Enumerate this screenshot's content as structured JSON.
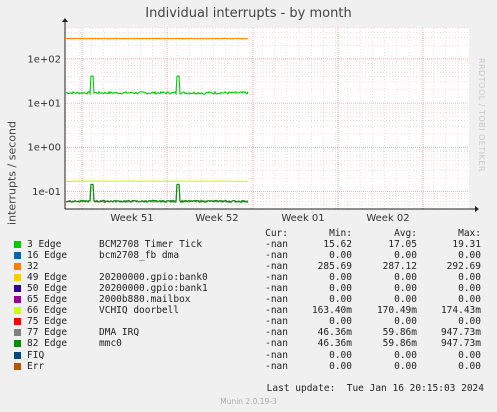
{
  "title": "Individual interrupts - by month",
  "watermark": "RRDTOOL / TOBI OETIKER",
  "footer": "Munin 2.0.19-3",
  "last_update": "Last update:  Tue Jan 16 20:15:03 2024",
  "legend_headers": {
    "cur": "Cur:",
    "min": "Min:",
    "avg": "Avg:",
    "max": "Max:"
  },
  "chart_data": {
    "type": "line",
    "title": "Individual interrupts - by month",
    "ylabel": "interrupts / second",
    "yscale": "log",
    "ylim": [
      0.04,
      500
    ],
    "y_ticks": [
      {
        "value": 0.1,
        "label": "1e-01"
      },
      {
        "value": 1,
        "label": "1e+00"
      },
      {
        "value": 10,
        "label": "1e+01"
      },
      {
        "value": 100,
        "label": "1e+02"
      }
    ],
    "x_ticks": [
      "Week 51",
      "Week 52",
      "Week 01",
      "Week 02"
    ],
    "grid": true,
    "series": [
      {
        "name": "3 Edge",
        "label": "BCM2708 Timer Tick",
        "color": "#00cc00",
        "cur": "-nan",
        "min": "15.62",
        "avg": "17.05",
        "max": "19.31",
        "level": 17.05,
        "noise": 0.06
      },
      {
        "name": "16 Edge",
        "label": "bcm2708_fb dma",
        "color": "#0066b3",
        "cur": "-nan",
        "min": "0.00",
        "avg": "0.00",
        "max": "0.00",
        "level": 0,
        "noise": 0
      },
      {
        "name": "32",
        "label": "",
        "color": "#ff8000",
        "cur": "-nan",
        "min": "285.69",
        "avg": "287.12",
        "max": "292.69",
        "level": 287.12,
        "noise": 0.005
      },
      {
        "name": "49 Edge",
        "label": "20200000.gpio:bank0",
        "color": "#ffcc00",
        "cur": "-nan",
        "min": "0.00",
        "avg": "0.00",
        "max": "0.00",
        "level": 0,
        "noise": 0
      },
      {
        "name": "50 Edge",
        "label": "20200000.gpio:bank1",
        "color": "#330099",
        "cur": "-nan",
        "min": "0.00",
        "avg": "0.00",
        "max": "0.00",
        "level": 0,
        "noise": 0
      },
      {
        "name": "65 Edge",
        "label": "2000b880.mailbox",
        "color": "#990099",
        "cur": "-nan",
        "min": "0.00",
        "avg": "0.00",
        "max": "0.00",
        "level": 0,
        "noise": 0
      },
      {
        "name": "66 Edge",
        "label": "VCHIQ doorbell",
        "color": "#ccff00",
        "cur": "-nan",
        "min": "163.40m",
        "avg": "170.49m",
        "max": "174.43m",
        "level": 0.17049,
        "noise": 0.01
      },
      {
        "name": "75 Edge",
        "label": "",
        "color": "#ff0000",
        "cur": "-nan",
        "min": "0.00",
        "avg": "0.00",
        "max": "0.00",
        "level": 0,
        "noise": 0
      },
      {
        "name": "77 Edge",
        "label": "DMA IRQ",
        "color": "#808080",
        "cur": "-nan",
        "min": "46.36m",
        "avg": "59.86m",
        "max": "947.73m",
        "level": 0.05986,
        "noise": 0.05
      },
      {
        "name": "82 Edge",
        "label": "mmc0",
        "color": "#008f00",
        "cur": "-nan",
        "min": "46.36m",
        "avg": "59.86m",
        "max": "947.73m",
        "level": 0.05986,
        "noise": 0.05
      },
      {
        "name": "FIQ",
        "label": "",
        "color": "#00487d",
        "cur": "-nan",
        "min": "0.00",
        "avg": "0.00",
        "max": "0.00",
        "level": 0,
        "noise": 0
      },
      {
        "name": "Err",
        "label": "",
        "color": "#b35a00",
        "cur": "-nan",
        "min": "0.00",
        "avg": "0.00",
        "max": "0.00",
        "level": 0,
        "noise": 0
      }
    ]
  }
}
